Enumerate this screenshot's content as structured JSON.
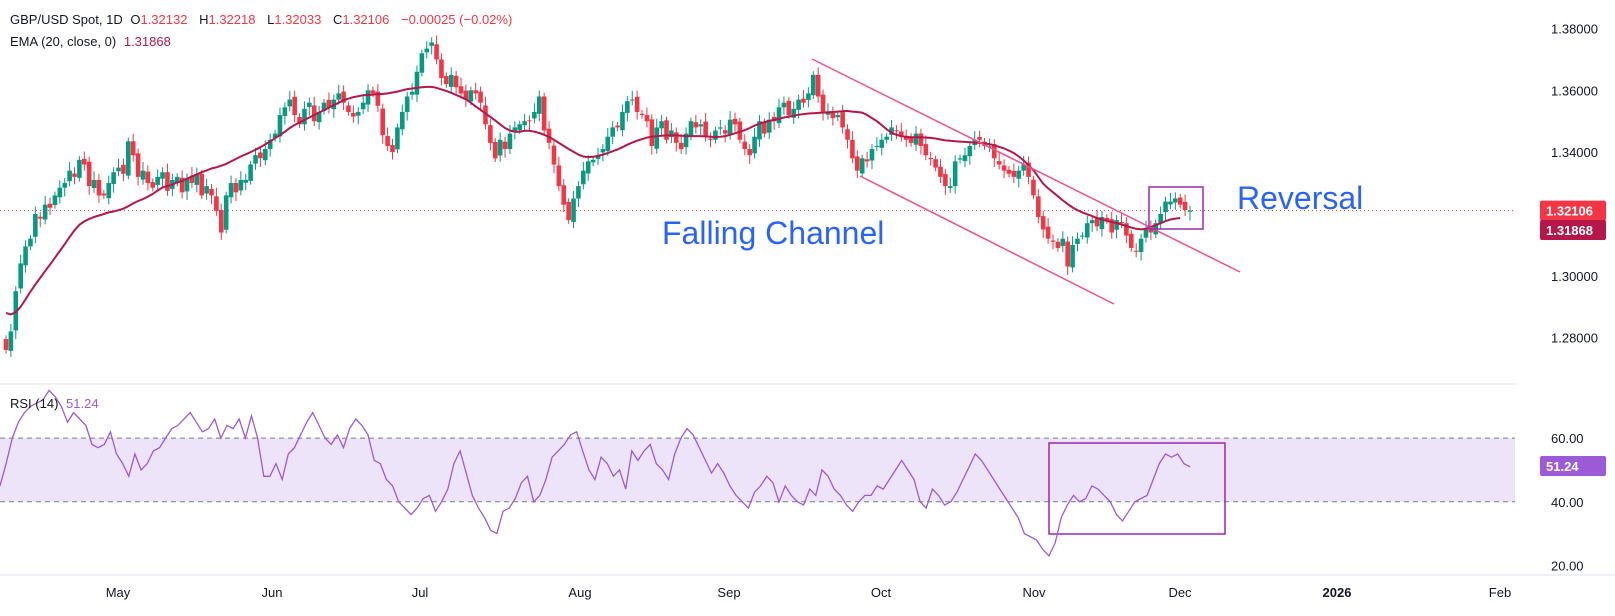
{
  "header": {
    "symbol": "GBP/USD Spot, 1D",
    "open_label": "O",
    "open": "1.32132",
    "high_label": "H",
    "high": "1.32218",
    "low_label": "L",
    "low": "1.32033",
    "close_label": "C",
    "close": "1.32106",
    "change": "−0.00025 (−0.02%)",
    "ema_label": "EMA (20, close, 0)",
    "ema_value": "1.31868",
    "rsi_label": "RSI (14)",
    "rsi_value": "51.24"
  },
  "annotations": {
    "channel": "Falling Channel",
    "reversal": "Reversal"
  },
  "colors": {
    "up": "#089981",
    "down": "#f23645",
    "ema": "#b5174b",
    "channel": "#f0508c",
    "text_blue": "#2962ff",
    "rsi": "#9c5bd6",
    "box": "#9c27b0",
    "rsi_band": "#ede4fa"
  },
  "chart_data": [
    {
      "type": "candlestick",
      "title": "GBP/USD Spot, 1D",
      "ylim": [
        1.27275,
        1.38275
      ],
      "y_ticks": [
        "1.38000",
        "1.36000",
        "1.34000",
        "1.32000",
        "1.30000",
        "1.28000"
      ],
      "x_ticks": [
        "May",
        "Jun",
        "Jul",
        "Aug",
        "Sep",
        "Oct",
        "Nov",
        "Dec",
        "2026",
        "Feb"
      ],
      "price_labels": {
        "last": "1.32106",
        "ema": "1.31868"
      },
      "close": [
        1.276,
        1.282,
        1.295,
        1.304,
        1.3095,
        1.312,
        1.32,
        1.3185,
        1.323,
        1.322,
        1.326,
        1.3285,
        1.33,
        1.334,
        1.332,
        1.3375,
        1.336,
        1.329,
        1.331,
        1.326,
        1.326,
        1.33,
        1.3335,
        1.335,
        1.333,
        1.3435,
        1.339,
        1.332,
        1.334,
        1.33,
        1.3285,
        1.332,
        1.3335,
        1.3275,
        1.331,
        1.332,
        1.327,
        1.3315,
        1.33,
        1.333,
        1.326,
        1.329,
        1.326,
        1.321,
        1.314,
        1.326,
        1.33,
        1.327,
        1.331,
        1.331,
        1.336,
        1.339,
        1.338,
        1.341,
        1.344,
        1.346,
        1.352,
        1.3545,
        1.357,
        1.352,
        1.349,
        1.354,
        1.356,
        1.35,
        1.353,
        1.356,
        1.3545,
        1.357,
        1.359,
        1.356,
        1.353,
        1.3515,
        1.353,
        1.356,
        1.36,
        1.359,
        1.355,
        1.3455,
        1.342,
        1.34,
        1.348,
        1.353,
        1.358,
        1.3595,
        1.366,
        1.372,
        1.3735,
        1.3755,
        1.37,
        1.364,
        1.362,
        1.365,
        1.361,
        1.359,
        1.357,
        1.36,
        1.359,
        1.356,
        1.349,
        1.343,
        1.338,
        1.344,
        1.341,
        1.346,
        1.348,
        1.349,
        1.35,
        1.35,
        1.353,
        1.358,
        1.347,
        1.343,
        1.336,
        1.329,
        1.323,
        1.318,
        1.325,
        1.329,
        1.334,
        1.337,
        1.3375,
        1.339,
        1.341,
        1.345,
        1.348,
        1.348,
        1.353,
        1.3565,
        1.357,
        1.353,
        1.352,
        1.35,
        1.342,
        1.348,
        1.35,
        1.344,
        1.347,
        1.343,
        1.341,
        1.346,
        1.35,
        1.348,
        1.349,
        1.345,
        1.344,
        1.347,
        1.348,
        1.346,
        1.3505,
        1.349,
        1.344,
        1.341,
        1.339,
        1.345,
        1.35,
        1.346,
        1.3505,
        1.35,
        1.3545,
        1.356,
        1.352,
        1.354,
        1.357,
        1.356,
        1.359,
        1.365,
        1.358,
        1.353,
        1.353,
        1.351,
        1.352,
        1.348,
        1.344,
        1.338,
        1.334,
        1.338,
        1.337,
        1.341,
        1.342,
        1.344,
        1.345,
        1.348,
        1.347,
        1.345,
        1.344,
        1.343,
        1.346,
        1.342,
        1.339,
        1.338,
        1.335,
        1.332,
        1.329,
        1.329,
        1.337,
        1.338,
        1.339,
        1.342,
        1.344,
        1.344,
        1.342,
        1.342,
        1.338,
        1.336,
        1.334,
        1.333,
        1.332,
        1.334,
        1.336,
        1.332,
        1.326,
        1.319,
        1.315,
        1.312,
        1.311,
        1.309,
        1.312,
        1.303,
        1.31,
        1.312,
        1.313,
        1.317,
        1.318,
        1.316,
        1.319,
        1.318,
        1.314,
        1.318,
        1.317,
        1.313,
        1.309,
        1.308,
        1.312,
        1.315,
        1.314,
        1.317,
        1.32,
        1.324,
        1.324,
        1.325,
        1.323,
        1.3213,
        1.3211
      ],
      "ema": [
        1.288,
        1.2875,
        1.2882,
        1.29,
        1.2924,
        1.2949,
        1.2972,
        1.2993,
        1.3015,
        1.3036,
        1.3058,
        1.308,
        1.3102,
        1.3125,
        1.3147,
        1.3165,
        1.3176,
        1.3184,
        1.319,
        1.3195,
        1.32,
        1.3205,
        1.3208,
        1.3212,
        1.3217,
        1.3225,
        1.3234,
        1.3242,
        1.3248,
        1.3256,
        1.3265,
        1.3276,
        1.3286,
        1.329,
        1.3295,
        1.3302,
        1.3307,
        1.3314,
        1.3321,
        1.3328,
        1.3335,
        1.3341,
        1.3347,
        1.3351,
        1.3356,
        1.3362,
        1.337,
        1.3378,
        1.3386,
        1.3393,
        1.34,
        1.3408,
        1.3416,
        1.3425,
        1.3435,
        1.3445,
        1.3455,
        1.3466,
        1.3478,
        1.3488,
        1.3496,
        1.3504,
        1.3512,
        1.352,
        1.3528,
        1.3536,
        1.3544,
        1.3552,
        1.356,
        1.3568,
        1.3573,
        1.3578,
        1.3581,
        1.3584,
        1.3585,
        1.3586,
        1.3587,
        1.3588,
        1.359,
        1.3593,
        1.3596,
        1.36,
        1.3604,
        1.3606,
        1.3608,
        1.361,
        1.3611,
        1.3611,
        1.3608,
        1.3603,
        1.3598,
        1.3592,
        1.3585,
        1.3578,
        1.3571,
        1.356,
        1.3548,
        1.3537,
        1.3525,
        1.3514,
        1.3502,
        1.349,
        1.3478,
        1.347,
        1.3466,
        1.3466,
        1.3469,
        1.3469,
        1.3466,
        1.3462,
        1.3456,
        1.3449,
        1.344,
        1.343,
        1.342,
        1.341,
        1.3401,
        1.3392,
        1.3386,
        1.3384,
        1.3385,
        1.3388,
        1.3392,
        1.3397,
        1.3403,
        1.3409,
        1.3416,
        1.3424,
        1.3431,
        1.3437,
        1.3442,
        1.3447,
        1.345,
        1.3452,
        1.3453,
        1.3454,
        1.3454,
        1.3454,
        1.3453,
        1.3452,
        1.3452,
        1.3452,
        1.3452,
        1.3451,
        1.345,
        1.3449,
        1.345,
        1.3452,
        1.3456,
        1.3461,
        1.3466,
        1.3471,
        1.3478,
        1.3486,
        1.3492,
        1.3497,
        1.3501,
        1.3504,
        1.3508,
        1.3512,
        1.3515,
        1.3518,
        1.3521,
        1.3523,
        1.3525,
        1.3526,
        1.3527,
        1.3528,
        1.3529,
        1.353,
        1.3531,
        1.3532,
        1.3533,
        1.3531,
        1.353,
        1.3528,
        1.352,
        1.351,
        1.35,
        1.3487,
        1.3474,
        1.3463,
        1.3456,
        1.3452,
        1.3449,
        1.3448,
        1.3448,
        1.3448,
        1.3447,
        1.3446,
        1.3444,
        1.3441,
        1.3438,
        1.3437,
        1.3435,
        1.3434,
        1.3433,
        1.3432,
        1.3431,
        1.343,
        1.3428,
        1.3426,
        1.3422,
        1.3417,
        1.3412,
        1.3405,
        1.3397,
        1.3386,
        1.3373,
        1.3358,
        1.3342,
        1.332,
        1.3298,
        1.3283,
        1.327,
        1.3257,
        1.3244,
        1.3232,
        1.3221,
        1.3212,
        1.3205,
        1.3199,
        1.3193,
        1.3187,
        1.3182,
        1.3178,
        1.3174,
        1.317,
        1.3166,
        1.3161,
        1.3156,
        1.3152,
        1.315,
        1.3152,
        1.3158,
        1.3164,
        1.317,
        1.3177,
        1.3182,
        1.3185,
        1.3187
      ]
    },
    {
      "type": "line",
      "title": "RSI (14)",
      "ylim": [
        17.0,
        77.0
      ],
      "y_ticks": [
        "60.00",
        "40.00",
        "20.00"
      ],
      "bands": {
        "upper": 60,
        "lower": 40
      },
      "last_label": "51.24",
      "values": [
        45,
        52,
        60,
        65,
        68,
        70,
        71,
        72,
        75,
        73,
        70,
        65,
        68,
        66,
        64,
        58,
        57,
        58,
        62,
        55,
        52,
        48,
        55,
        50,
        52,
        56,
        57,
        60,
        63,
        64,
        66,
        68,
        65,
        62,
        63,
        66,
        60,
        64,
        63,
        66,
        60,
        67,
        60,
        48,
        48,
        52,
        47,
        55,
        57,
        61,
        65,
        68,
        64,
        60,
        58,
        61,
        57,
        63,
        66,
        64,
        61,
        53,
        52,
        47,
        45,
        40,
        38,
        36,
        38,
        41,
        42,
        37,
        40,
        44,
        52,
        56,
        49,
        42,
        38,
        35,
        31,
        30,
        37,
        38,
        41,
        46,
        48,
        40,
        42,
        47,
        54,
        56,
        58,
        61,
        62,
        56,
        50,
        47,
        54,
        52,
        48,
        50,
        44,
        56,
        53,
        56,
        58,
        52,
        50,
        47,
        55,
        60,
        63,
        61,
        57,
        53,
        49,
        52,
        49,
        45,
        42,
        40,
        38,
        43,
        45,
        48,
        46,
        40,
        45,
        42,
        40,
        39,
        44,
        42,
        50,
        48,
        44,
        42,
        39,
        37,
        40,
        42,
        42,
        45,
        44,
        47,
        50,
        53,
        50,
        47,
        40,
        38,
        44,
        42,
        39,
        40,
        43,
        47,
        51,
        55,
        53,
        50,
        47,
        44,
        41,
        38,
        35,
        30,
        29,
        28,
        25,
        23,
        27,
        35,
        39,
        42,
        40,
        41,
        45,
        44,
        42,
        40,
        36,
        34,
        37,
        40,
        41,
        42,
        47,
        52,
        55,
        54,
        55,
        52,
        51
      ]
    }
  ]
}
